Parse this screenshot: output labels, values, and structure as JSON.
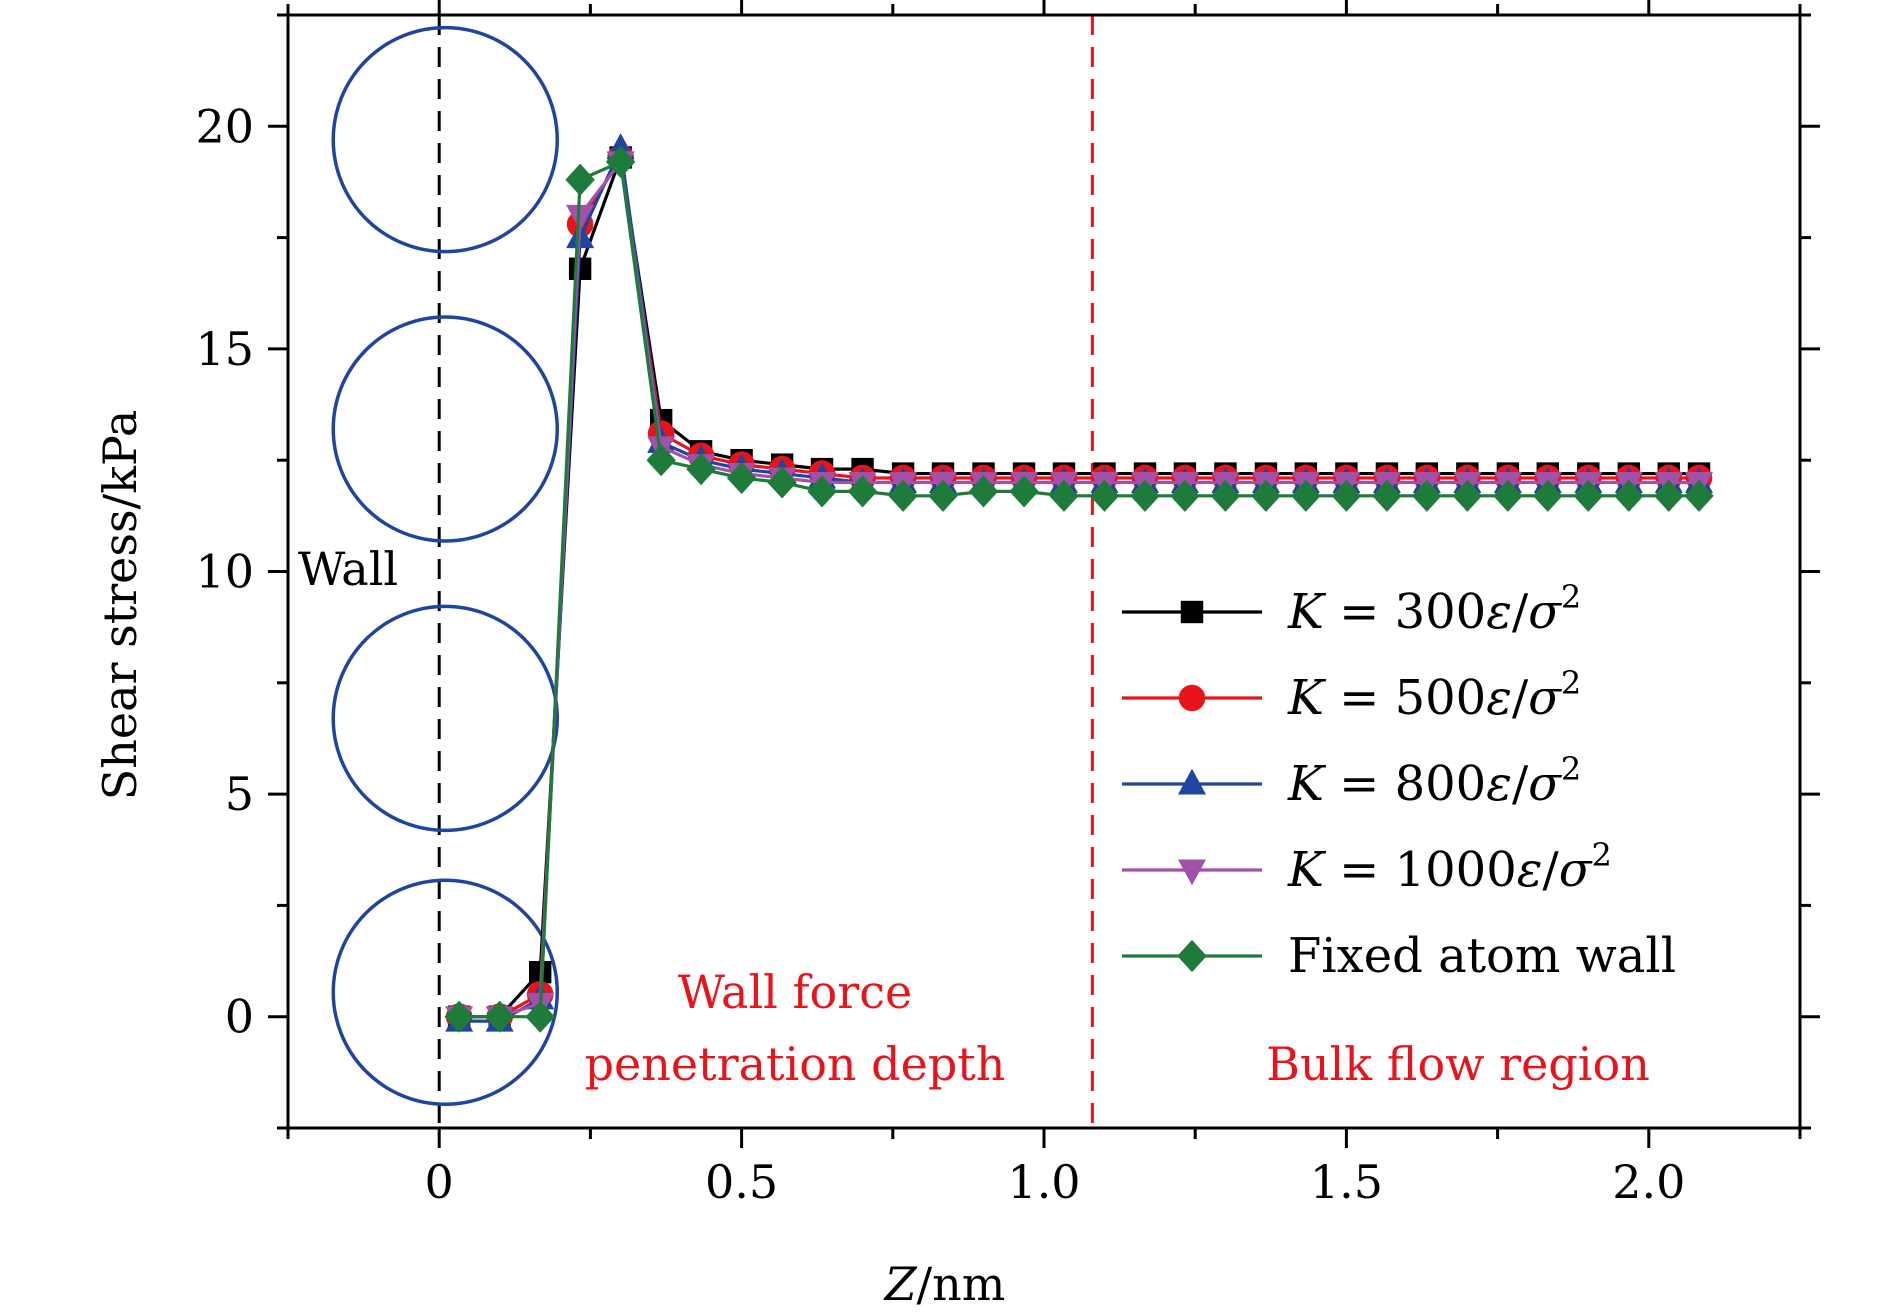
{
  "chart_data": {
    "type": "line",
    "xlabel_italic": "Z",
    "xlabel_rest": "/nm",
    "ylabel": "Shear stress/kPa",
    "xlim": [
      -0.25,
      2.25
    ],
    "ylim": [
      -2.5,
      22.5
    ],
    "x_ticks": [
      0,
      0.5,
      1.0,
      1.5,
      2.0
    ],
    "x_tick_labels": [
      "0",
      "0.5",
      "1.0",
      "1.5",
      "2.0"
    ],
    "x_minor_ticks": [
      -0.25,
      0.25,
      0.75,
      1.25,
      1.75,
      2.25
    ],
    "y_ticks": [
      0,
      5,
      10,
      15,
      20
    ],
    "y_tick_labels": [
      "0",
      "5",
      "10",
      "15",
      "20"
    ],
    "y_minor_ticks": [
      -2.5,
      2.5,
      7.5,
      12.5,
      17.5,
      22.5
    ],
    "x": [
      0.033,
      0.1,
      0.167,
      0.233,
      0.3,
      0.367,
      0.433,
      0.5,
      0.567,
      0.633,
      0.7,
      0.767,
      0.833,
      0.9,
      0.967,
      1.033,
      1.1,
      1.167,
      1.233,
      1.3,
      1.367,
      1.433,
      1.5,
      1.567,
      1.633,
      1.7,
      1.767,
      1.833,
      1.9,
      1.967,
      2.033,
      2.083
    ],
    "series": [
      {
        "name": "K = 300ε/σ²",
        "k_value": "300",
        "marker": "square",
        "color": "#000000",
        "values": [
          0.0,
          0.0,
          1.0,
          16.8,
          19.3,
          13.4,
          12.7,
          12.5,
          12.4,
          12.3,
          12.3,
          12.2,
          12.2,
          12.2,
          12.2,
          12.2,
          12.2,
          12.2,
          12.2,
          12.2,
          12.2,
          12.2,
          12.2,
          12.2,
          12.2,
          12.2,
          12.2,
          12.2,
          12.2,
          12.2,
          12.2,
          12.2
        ]
      },
      {
        "name": "K = 500ε/σ²",
        "k_value": "500",
        "marker": "circle",
        "color": "#e8141c",
        "values": [
          0.0,
          0.0,
          0.5,
          17.8,
          19.3,
          13.1,
          12.6,
          12.4,
          12.3,
          12.2,
          12.1,
          12.1,
          12.1,
          12.1,
          12.1,
          12.1,
          12.1,
          12.1,
          12.1,
          12.1,
          12.1,
          12.1,
          12.1,
          12.1,
          12.1,
          12.1,
          12.1,
          12.1,
          12.1,
          12.1,
          12.1,
          12.1
        ]
      },
      {
        "name": "K = 800ε/σ²",
        "k_value": "800",
        "marker": "triangle-up",
        "color": "#1f45a0",
        "values": [
          -0.1,
          -0.1,
          0.4,
          17.5,
          19.5,
          12.9,
          12.5,
          12.3,
          12.2,
          12.1,
          12.0,
          12.0,
          12.0,
          12.0,
          12.0,
          12.0,
          12.0,
          12.0,
          12.0,
          12.0,
          12.0,
          12.0,
          12.0,
          12.0,
          12.0,
          12.0,
          12.0,
          12.0,
          12.0,
          12.0,
          12.0,
          12.0
        ]
      },
      {
        "name": "K = 1000ε/σ²",
        "k_value": "1000",
        "marker": "triangle-down",
        "color": "#a350a8",
        "values": [
          0.0,
          0.0,
          0.3,
          18.0,
          19.2,
          12.8,
          12.4,
          12.2,
          12.1,
          12.0,
          12.0,
          12.0,
          12.0,
          12.0,
          12.0,
          12.0,
          12.0,
          12.0,
          12.0,
          12.0,
          12.0,
          12.0,
          12.0,
          12.0,
          12.0,
          12.0,
          12.0,
          12.0,
          12.0,
          12.0,
          12.0,
          12.0
        ]
      },
      {
        "name": "Fixed atom wall",
        "marker": "diamond",
        "color": "#1e7b3a",
        "values": [
          0.0,
          0.0,
          0.0,
          18.8,
          19.2,
          12.5,
          12.3,
          12.1,
          12.0,
          11.8,
          11.8,
          11.7,
          11.7,
          11.8,
          11.8,
          11.7,
          11.7,
          11.7,
          11.7,
          11.7,
          11.7,
          11.7,
          11.7,
          11.7,
          11.7,
          11.7,
          11.7,
          11.7,
          11.7,
          11.7,
          11.7,
          11.7
        ]
      }
    ],
    "wall_line_x": 0,
    "bulk_line_x": 1.08,
    "wall_atoms_y": [
      19.7,
      13.2,
      6.7,
      0.55
    ],
    "annotations": {
      "wall": "Wall",
      "penetration_line1": "Wall force",
      "penetration_line2": "penetration depth",
      "bulk": "Bulk flow region"
    },
    "legend_placement": "lower-right",
    "legend_k_symbol": "K",
    "legend_eq": "=",
    "legend_eps": "ε",
    "legend_slash": "/",
    "legend_sigma": "σ",
    "legend_sup": "2",
    "colors": {
      "axis": "#000000",
      "annotation_red": "#e8141c",
      "wall_circle": "#1f45a0",
      "wall_line": "#000000",
      "bulk_line": "#e8141c"
    }
  }
}
